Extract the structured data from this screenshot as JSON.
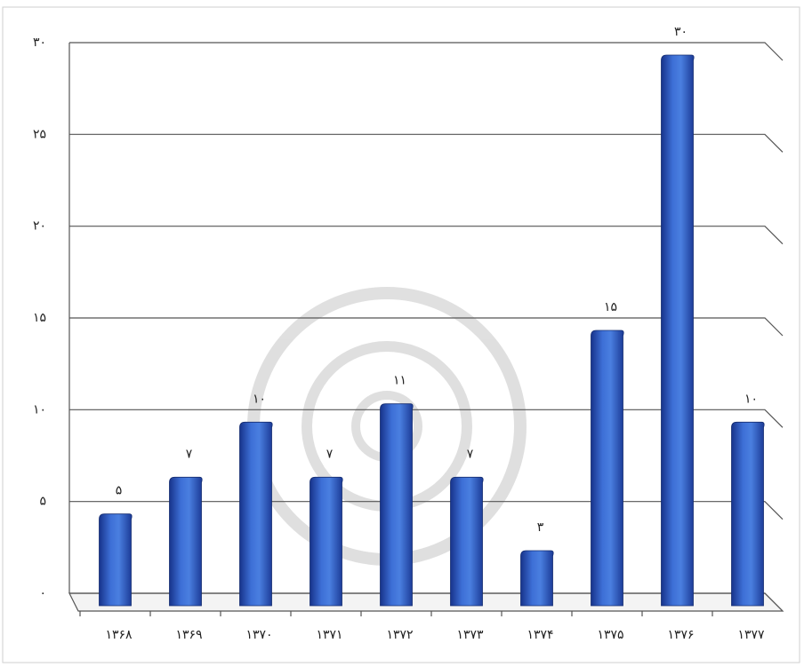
{
  "chart_data": {
    "type": "bar",
    "categories": [
      "۱۳۶۸",
      "۱۳۶۹",
      "۱۳۷۰",
      "۱۳۷۱",
      "۱۳۷۲",
      "۱۳۷۳",
      "۱۳۷۴",
      "۱۳۷۵",
      "۱۳۷۶",
      "۱۳۷۷"
    ],
    "values": [
      5,
      7,
      10,
      7,
      11,
      7,
      3,
      15,
      30,
      10
    ],
    "value_labels": [
      "۵",
      "۷",
      "۱۰",
      "۷",
      "۱۱",
      "۷",
      "۳",
      "۱۵",
      "۳۰",
      "۱۰"
    ],
    "color": "#2f5fc4",
    "ylim": [
      0,
      30
    ],
    "yticks": [
      {
        "value": 0,
        "label": "۰"
      },
      {
        "value": 5,
        "label": "۵"
      },
      {
        "value": 10,
        "label": "۱۰"
      },
      {
        "value": 15,
        "label": "۱۵"
      },
      {
        "value": 20,
        "label": "۲۰"
      },
      {
        "value": 25,
        "label": "۲۵"
      },
      {
        "value": 30,
        "label": "۳۰"
      }
    ],
    "grid": true
  }
}
